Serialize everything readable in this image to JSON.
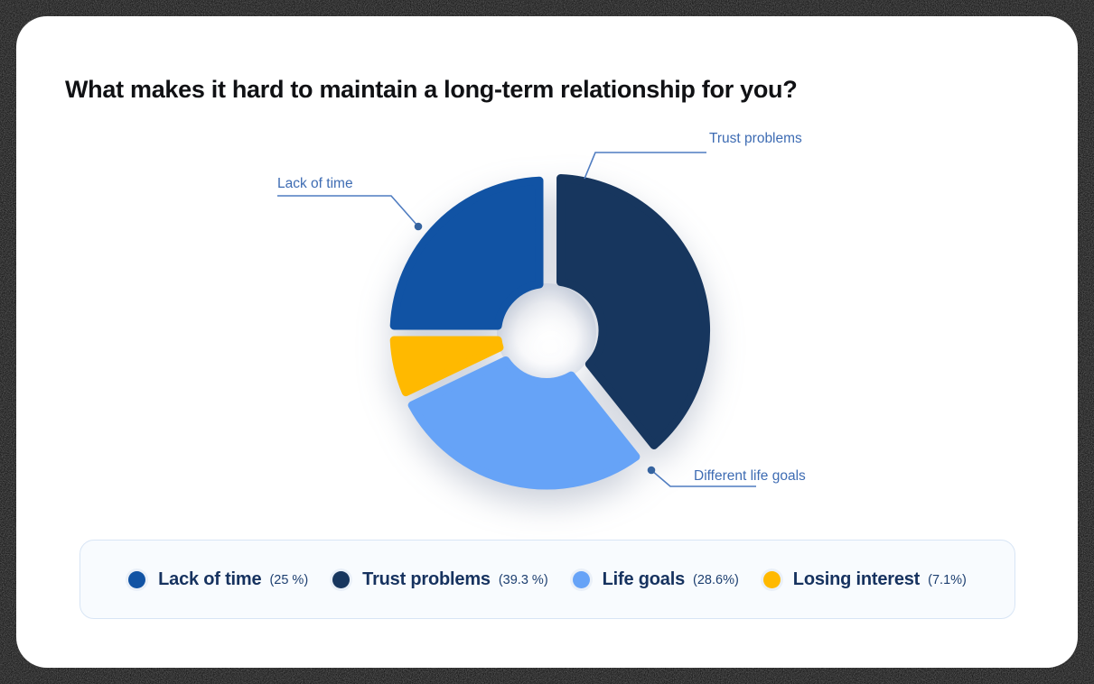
{
  "title": "What makes it hard to maintain a long-term relationship for you?",
  "colors": {
    "card_background": "#ffffff",
    "frame_background": "#050505",
    "title_text": "#101114",
    "callout_text": "#3e6cb3",
    "callout_line": "#4f7cc0",
    "callout_dot": "#35639f",
    "legend_background": "#f8fbfe",
    "legend_border": "#d8e5f5",
    "legend_label_text": "#16325f"
  },
  "chart_data": {
    "type": "pie",
    "variant": "donut",
    "title": "What makes it hard to maintain a long-term relationship for you?",
    "categories": [
      "Lack of time",
      "Trust problems",
      "Life goals",
      "Losing interest"
    ],
    "values": [
      25,
      39.3,
      28.6,
      7.1
    ],
    "unit": "%",
    "start_angle_deg": 0,
    "clockwise": true,
    "legend_position": "bottom",
    "slices": [
      {
        "label": "Trust problems",
        "value": 39.3,
        "color": "#17365e",
        "exploded": true
      },
      {
        "label": "Life goals",
        "value": 28.6,
        "color": "#66a3f7",
        "exploded": false
      },
      {
        "label": "Losing interest",
        "value": 7.1,
        "color": "#ffb900",
        "exploded": false
      },
      {
        "label": "Lack of time",
        "value": 25,
        "color": "#1153a4",
        "exploded": false
      }
    ],
    "legend": [
      {
        "label": "Lack of time",
        "percent_text": "(25 %)",
        "color": "#1153a4"
      },
      {
        "label": "Trust problems",
        "percent_text": "(39.3 %)",
        "color": "#17365e"
      },
      {
        "label": "Life goals",
        "percent_text": "(28.6%)",
        "color": "#66a3f7"
      },
      {
        "label": "Losing interest",
        "percent_text": "(7.1%)",
        "color": "#ffb900"
      }
    ],
    "callouts": [
      {
        "label": "Trust problems"
      },
      {
        "label": "Lack of time"
      },
      {
        "label": "Different life goals"
      }
    ]
  }
}
